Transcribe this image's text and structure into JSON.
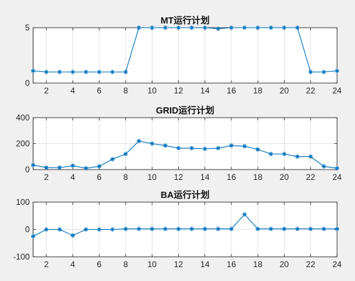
{
  "chart_data": [
    {
      "type": "line",
      "title": "MT运行计划",
      "x": [
        1,
        2,
        3,
        4,
        5,
        6,
        7,
        8,
        9,
        10,
        11,
        12,
        13,
        14,
        15,
        16,
        17,
        18,
        19,
        20,
        21,
        22,
        23,
        24
      ],
      "xlim": [
        1,
        24
      ],
      "xticks": [
        2,
        4,
        6,
        8,
        10,
        12,
        14,
        16,
        18,
        20,
        22,
        24
      ],
      "ylim": [
        0,
        5
      ],
      "yticks": [
        0,
        5
      ],
      "grid": true,
      "series": [
        {
          "color": "#0072bd",
          "marker": "asterisk",
          "values": [
            1.1,
            1,
            1,
            1,
            1,
            1,
            1,
            1,
            5,
            5,
            5,
            5,
            5,
            5,
            4.9,
            5,
            5,
            5,
            5,
            5,
            5,
            1,
            1,
            1.1
          ]
        }
      ]
    },
    {
      "type": "line",
      "title": "GRID运行计划",
      "x": [
        1,
        2,
        3,
        4,
        5,
        6,
        7,
        8,
        9,
        10,
        11,
        12,
        13,
        14,
        15,
        16,
        17,
        18,
        19,
        20,
        21,
        22,
        23,
        24
      ],
      "xlim": [
        1,
        24
      ],
      "xticks": [
        2,
        4,
        6,
        8,
        10,
        12,
        14,
        16,
        18,
        20,
        22,
        24
      ],
      "ylim": [
        0,
        400
      ],
      "yticks": [
        0,
        200,
        400
      ],
      "grid": true,
      "series": [
        {
          "color": "#0072bd",
          "marker": "asterisk",
          "values": [
            35,
            15,
            15,
            30,
            10,
            25,
            80,
            120,
            220,
            200,
            185,
            165,
            165,
            160,
            165,
            185,
            180,
            155,
            120,
            120,
            100,
            100,
            25,
            10
          ]
        }
      ]
    },
    {
      "type": "line",
      "title": "BA运行计划",
      "x": [
        1,
        2,
        3,
        4,
        5,
        6,
        7,
        8,
        9,
        10,
        11,
        12,
        13,
        14,
        15,
        16,
        17,
        18,
        19,
        20,
        21,
        22,
        23,
        24
      ],
      "xlim": [
        1,
        24
      ],
      "xticks": [
        2,
        4,
        6,
        8,
        10,
        12,
        14,
        16,
        18,
        20,
        22,
        24
      ],
      "ylim": [
        -100,
        100
      ],
      "yticks": [
        -100,
        0,
        100
      ],
      "grid": true,
      "series": [
        {
          "color": "#0072bd",
          "marker": "asterisk",
          "values": [
            -25,
            0,
            0,
            -22,
            0,
            0,
            0,
            2,
            2,
            2,
            2,
            2,
            2,
            2,
            2,
            2,
            55,
            2,
            2,
            2,
            2,
            2,
            2,
            2
          ]
        }
      ]
    }
  ]
}
